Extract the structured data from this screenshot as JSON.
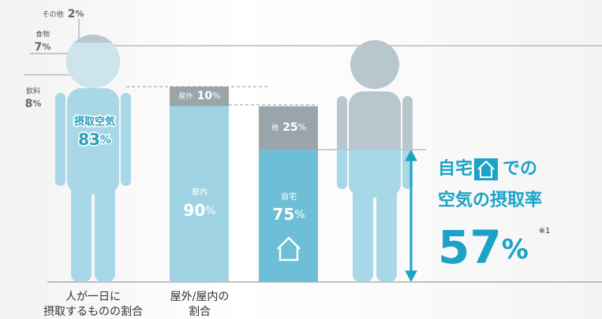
{
  "intake": {
    "caption": [
      "人が一日に",
      "摂取するものの割合"
    ],
    "items": [
      {
        "name": "その他",
        "value": 2,
        "unit": "%"
      },
      {
        "name": "食物",
        "value": 7,
        "unit": "%"
      },
      {
        "name": "飲料",
        "value": 8,
        "unit": "%"
      },
      {
        "name": "摂取空気",
        "value": 83,
        "unit": "%"
      }
    ]
  },
  "location": {
    "caption": [
      "屋外/屋内の",
      "割合"
    ],
    "outdoor": {
      "name": "屋外",
      "value": 10,
      "unit": "%"
    },
    "indoor": {
      "name": "屋内",
      "value": 90,
      "unit": "%"
    }
  },
  "indoor_split": {
    "other": {
      "name": "他",
      "value": 25,
      "unit": "%"
    },
    "home": {
      "name": "自宅",
      "value": 75,
      "unit": "%"
    }
  },
  "result": {
    "line1_before": "自宅",
    "line1_after": "での",
    "line2": "空気の摂取率",
    "value": 57,
    "unit": "%",
    "note": "※1"
  }
}
